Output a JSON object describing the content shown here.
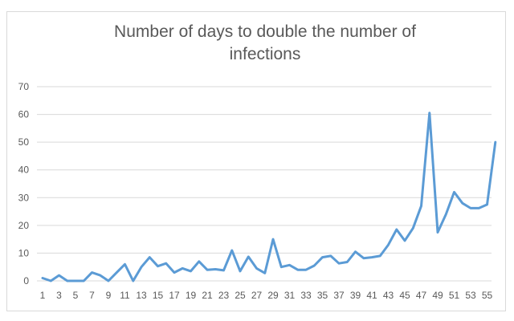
{
  "chart_data": {
    "type": "line",
    "title": "Number of days to double the number of infections",
    "xlabel": "",
    "ylabel": "",
    "ylim": [
      0,
      70
    ],
    "yticks": [
      "0",
      "10",
      "20",
      "30",
      "40",
      "50",
      "60",
      "70"
    ],
    "xticks": [
      "1",
      "3",
      "5",
      "7",
      "9",
      "11",
      "13",
      "15",
      "17",
      "19",
      "21",
      "23",
      "25",
      "27",
      "29",
      "31",
      "33",
      "35",
      "37",
      "39",
      "41",
      "43",
      "45",
      "47",
      "49",
      "51",
      "53",
      "55"
    ],
    "grid": "horizontal",
    "legend": "none",
    "color": "#5b9bd5",
    "x": [
      1,
      2,
      3,
      4,
      5,
      6,
      7,
      8,
      9,
      10,
      11,
      12,
      13,
      14,
      15,
      16,
      17,
      18,
      19,
      20,
      21,
      22,
      23,
      24,
      25,
      26,
      27,
      28,
      29,
      30,
      31,
      32,
      33,
      34,
      35,
      36,
      37,
      38,
      39,
      40,
      41,
      42,
      43,
      44,
      45,
      46,
      47,
      48,
      49,
      50,
      51,
      52,
      53,
      54,
      55,
      56
    ],
    "values": [
      1,
      0,
      2,
      0,
      0,
      0,
      3,
      2,
      0,
      3,
      6,
      0,
      5,
      8.5,
      5.3,
      6.3,
      3,
      4.5,
      3.5,
      7,
      4,
      4.2,
      3.8,
      11,
      3.5,
      8.7,
      4.5,
      2.8,
      15,
      5,
      5.7,
      4,
      4,
      5.5,
      8.5,
      9,
      6.3,
      6.8,
      10.5,
      8.2,
      8.5,
      9,
      13,
      18.5,
      14.5,
      19,
      27,
      60.5,
      17.5,
      24,
      32,
      28,
      26.2,
      26.2,
      27.5,
      50
    ]
  }
}
